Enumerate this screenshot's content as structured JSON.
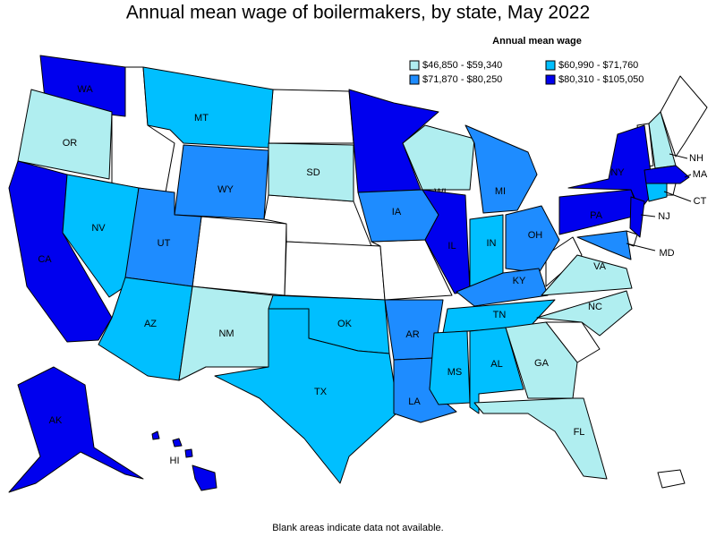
{
  "title": "Annual mean wage of boilermakers, by state, May 2022",
  "legend": {
    "title": "Annual mean wage",
    "classes": [
      {
        "label": "$46,850 - $59,340",
        "color": "#b0eef0"
      },
      {
        "label": "$60,990 - $71,760",
        "color": "#00bfff"
      },
      {
        "label": "$71,870 - $80,250",
        "color": "#1e8cff"
      },
      {
        "label": "$80,310 - $105,050",
        "color": "#0000ee"
      }
    ]
  },
  "states": [
    {
      "abbr": "WA",
      "class": 3
    },
    {
      "abbr": "OR",
      "class": 0
    },
    {
      "abbr": "CA",
      "class": 3
    },
    {
      "abbr": "NV",
      "class": 1
    },
    {
      "abbr": "MT",
      "class": 1
    },
    {
      "abbr": "WY",
      "class": 2
    },
    {
      "abbr": "UT",
      "class": 2
    },
    {
      "abbr": "AZ",
      "class": 1
    },
    {
      "abbr": "NM",
      "class": 0
    },
    {
      "abbr": "SD",
      "class": 0
    },
    {
      "abbr": "OK",
      "class": 1
    },
    {
      "abbr": "TX",
      "class": 1
    },
    {
      "abbr": "MN",
      "class": 3
    },
    {
      "abbr": "IA",
      "class": 2
    },
    {
      "abbr": "AR",
      "class": 2
    },
    {
      "abbr": "LA",
      "class": 2
    },
    {
      "abbr": "WI",
      "class": 0
    },
    {
      "abbr": "IL",
      "class": 3
    },
    {
      "abbr": "MI",
      "class": 2
    },
    {
      "abbr": "IN",
      "class": 1
    },
    {
      "abbr": "OH",
      "class": 2
    },
    {
      "abbr": "KY",
      "class": 2
    },
    {
      "abbr": "TN",
      "class": 1
    },
    {
      "abbr": "MS",
      "class": 1
    },
    {
      "abbr": "AL",
      "class": 1
    },
    {
      "abbr": "GA",
      "class": 0
    },
    {
      "abbr": "FL",
      "class": 0
    },
    {
      "abbr": "NC",
      "class": 0
    },
    {
      "abbr": "VA",
      "class": 0
    },
    {
      "abbr": "PA",
      "class": 3
    },
    {
      "abbr": "NY",
      "class": 3
    },
    {
      "abbr": "NJ",
      "class": 3
    },
    {
      "abbr": "MD",
      "class": 2
    },
    {
      "abbr": "NH",
      "class": 0
    },
    {
      "abbr": "MA",
      "class": 3
    },
    {
      "abbr": "CT",
      "class": 1
    },
    {
      "abbr": "AK",
      "class": 3
    },
    {
      "abbr": "HI",
      "class": 3
    }
  ],
  "note": "Blank areas indicate data not available."
}
